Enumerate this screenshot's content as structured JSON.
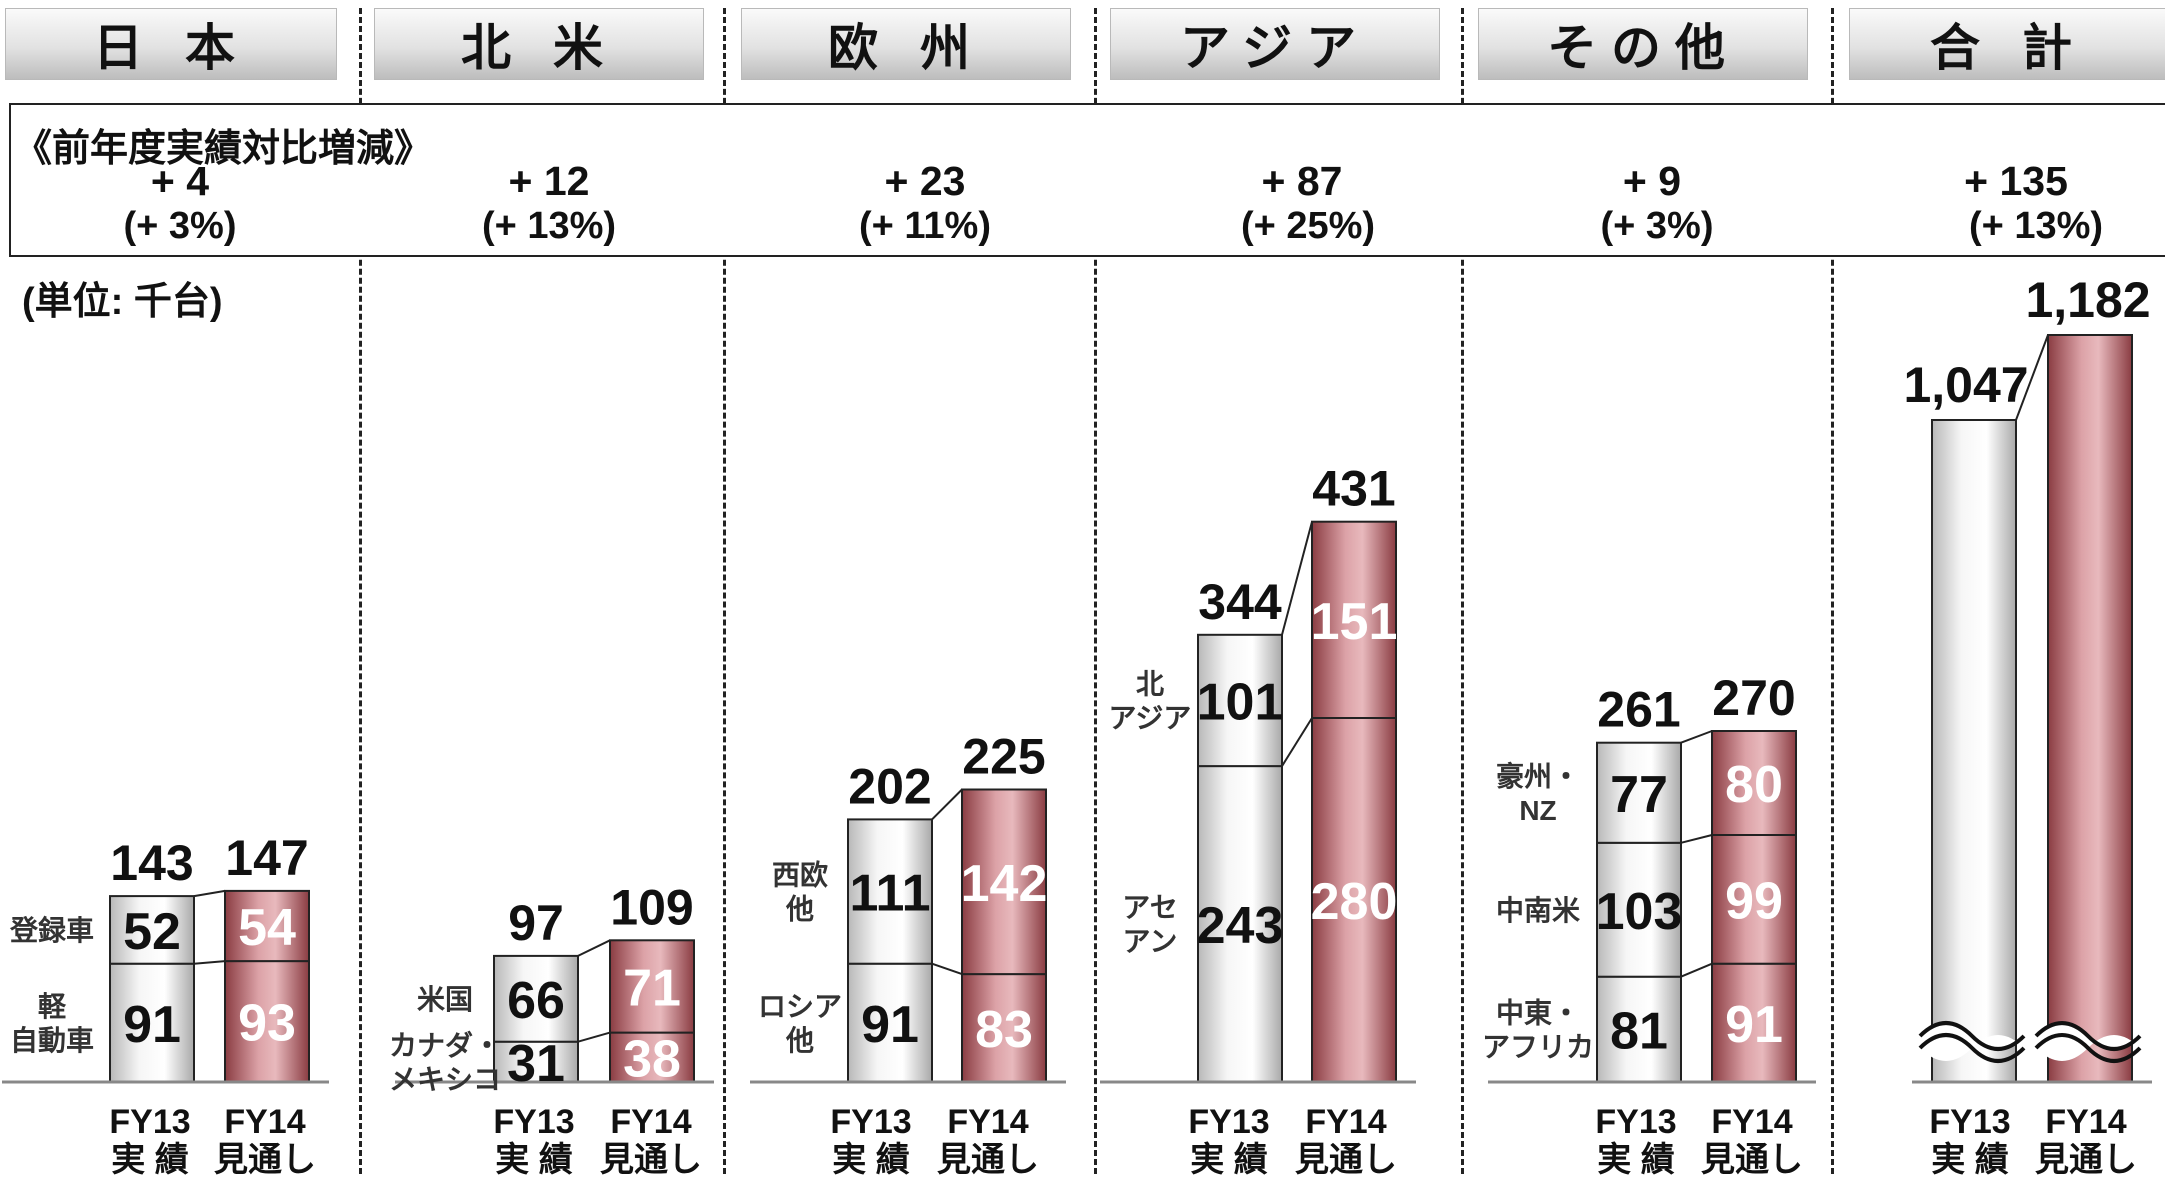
{
  "headers": [
    "日 本",
    "北 米",
    "欧 州",
    "アジア",
    "その他",
    "合 計"
  ],
  "summary": {
    "title": "《前年度実績対比増減》",
    "items": [
      {
        "diff": "+ 4",
        "pct": "(+ 3%)"
      },
      {
        "diff": "+ 12",
        "pct": "(+ 13%)"
      },
      {
        "diff": "+ 23",
        "pct": "(+ 11%)"
      },
      {
        "diff": "+ 87",
        "pct": "(+ 25%)"
      },
      {
        "diff": "+ 9",
        "pct": "(+ 3%)"
      },
      {
        "diff": "+ 135",
        "pct": "(+ 13%)"
      }
    ]
  },
  "unit_label": "(単位: 千台)",
  "colors": {
    "fy13": "#e6e6e6",
    "fy14": "#b86f74",
    "fy14_light": "#e8b9bd",
    "fy14_dark": "#8a3c42"
  },
  "chart_data": {
    "type": "bar",
    "stacked": true,
    "categories": [
      {
        "line1": "FY13",
        "line2": "実 績"
      },
      {
        "line1": "FY14",
        "line2": "見通し"
      }
    ],
    "groups": [
      {
        "region": "日 本",
        "segments": [
          "軽 自動車",
          "登録車"
        ],
        "fy13": [
          91,
          52
        ],
        "fy14": [
          93,
          54
        ],
        "totals": [
          "143",
          "147"
        ]
      },
      {
        "region": "北 米",
        "segments": [
          "カナダ・ メキシコ",
          "米国"
        ],
        "fy13": [
          31,
          66
        ],
        "fy14": [
          38,
          71
        ],
        "totals": [
          "97",
          "109"
        ]
      },
      {
        "region": "欧 州",
        "segments": [
          "ロシア 他",
          "西欧 他"
        ],
        "fy13": [
          91,
          111
        ],
        "fy14": [
          83,
          142
        ],
        "totals": [
          "202",
          "225"
        ]
      },
      {
        "region": "アジア",
        "segments": [
          "アセ アン",
          "北 アジア"
        ],
        "fy13": [
          243,
          101
        ],
        "fy14": [
          280,
          151
        ],
        "totals": [
          "344",
          "431"
        ]
      },
      {
        "region": "その他",
        "segments": [
          "中東・ アフリカ",
          "中南米",
          "豪州・ NZ"
        ],
        "fy13": [
          81,
          103,
          77
        ],
        "fy14": [
          91,
          99,
          80
        ],
        "totals": [
          "261",
          "270"
        ]
      },
      {
        "region": "合 計",
        "segments": [],
        "fy13": [
          1047
        ],
        "fy14": [
          1182
        ],
        "totals": [
          "1,047",
          "1,182"
        ],
        "broken_axis": true
      }
    ]
  }
}
